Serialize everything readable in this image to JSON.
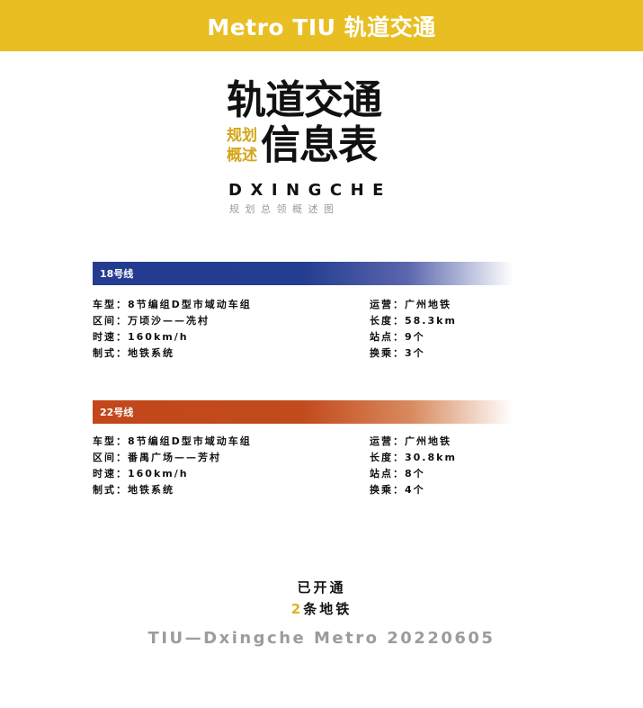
{
  "header": {
    "title": "Metro TIU 轨道交通"
  },
  "hero": {
    "title": "轨道交通",
    "side_1": "规划",
    "side_2": "概述",
    "subtitle": "信息表",
    "latin": "DXINGCHE",
    "caption": "规划总领概述图"
  },
  "lines": [
    {
      "name": "18号线",
      "color": "#243c8f",
      "vehicle": "车型：8节编组D型市域动车组",
      "section": "区间：万顷沙——冼村",
      "speed": "时速：160km/h",
      "system": "制式：地铁系统",
      "operator": "运营：广州地铁",
      "length": "长度：58.3km",
      "stations": "站点：9个",
      "transfers": "换乘：3个"
    },
    {
      "name": "22号线",
      "color": "#c2471b",
      "vehicle": "车型：8节编组D型市域动车组",
      "section": "区间：番禺广场——芳村",
      "speed": "时速：160km/h",
      "system": "制式：地铁系统",
      "operator": "运营：广州地铁",
      "length": "长度：30.8km",
      "stations": "站点：8个",
      "transfers": "换乘：4个"
    }
  ],
  "status": {
    "opened_label": "已开通",
    "count": "2",
    "count_suffix": "条地铁"
  },
  "footer": {
    "text": "TIU—Dxingche Metro 20220605"
  }
}
